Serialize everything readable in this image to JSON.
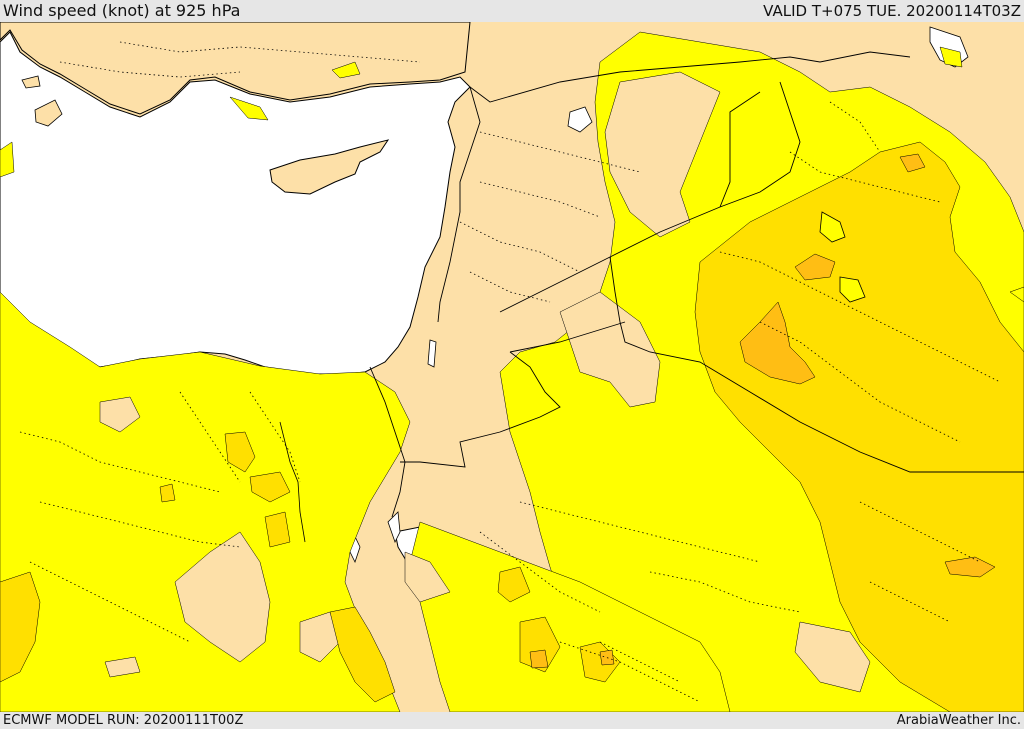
{
  "header": {
    "title": "Wind speed (knot) at 925 hPa",
    "valid": "VALID T+075 TUE. 20200114T03Z"
  },
  "footer": {
    "model_run": "ECMWF MODEL RUN: 20200111T00Z",
    "credit": "ArabiaWeather Inc."
  },
  "colors": {
    "sea": "#ffffff",
    "band_0_10": "#fde0a8",
    "band_10_20": "#ffff00",
    "band_20_30": "#ffe000",
    "band_30_40": "#ffbe14",
    "border": "#000000"
  }
}
